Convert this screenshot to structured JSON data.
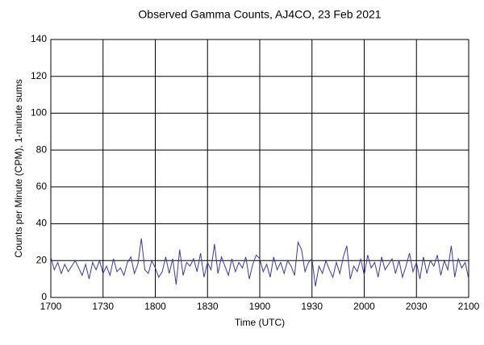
{
  "chart_data": {
    "type": "line",
    "title": "Observed Gamma Counts, AJ4CO, 23 Feb 2021",
    "x_label": "Time (UTC)",
    "y_label": "Counts per Minute (CPM), 1-minute sums",
    "color": "#3a3a9e",
    "grid": true,
    "xlim": [
      1020,
      1260
    ],
    "xticks": [
      {
        "value": 1020,
        "label": "1700"
      },
      {
        "value": 1050,
        "label": "1730"
      },
      {
        "value": 1080,
        "label": "1800"
      },
      {
        "value": 1110,
        "label": "1830"
      },
      {
        "value": 1140,
        "label": "1900"
      },
      {
        "value": 1170,
        "label": "1930"
      },
      {
        "value": 1200,
        "label": "2000"
      },
      {
        "value": 1230,
        "label": "2030"
      },
      {
        "value": 1260,
        "label": "2100"
      }
    ],
    "ylim": [
      0,
      140
    ],
    "yticks": [
      0,
      20,
      40,
      60,
      80,
      100,
      120,
      140
    ],
    "x": [
      1020,
      1022,
      1024,
      1026,
      1028,
      1030,
      1032,
      1034,
      1036,
      1038,
      1040,
      1042,
      1044,
      1046,
      1048,
      1050,
      1052,
      1054,
      1056,
      1058,
      1060,
      1062,
      1064,
      1066,
      1068,
      1070,
      1072,
      1074,
      1076,
      1078,
      1080,
      1082,
      1084,
      1086,
      1088,
      1090,
      1092,
      1094,
      1096,
      1098,
      1100,
      1102,
      1104,
      1106,
      1108,
      1110,
      1112,
      1114,
      1116,
      1118,
      1120,
      1122,
      1124,
      1126,
      1128,
      1130,
      1132,
      1134,
      1136,
      1138,
      1140,
      1142,
      1144,
      1146,
      1148,
      1150,
      1152,
      1154,
      1156,
      1158,
      1160,
      1162,
      1164,
      1166,
      1168,
      1170,
      1172,
      1174,
      1176,
      1178,
      1180,
      1182,
      1184,
      1186,
      1188,
      1190,
      1192,
      1194,
      1196,
      1198,
      1200,
      1202,
      1204,
      1206,
      1208,
      1210,
      1212,
      1214,
      1216,
      1218,
      1220,
      1222,
      1224,
      1226,
      1228,
      1230,
      1232,
      1234,
      1236,
      1238,
      1240,
      1242,
      1244,
      1246,
      1248,
      1250,
      1252,
      1254,
      1256,
      1258,
      1260
    ],
    "values": [
      22,
      15,
      19,
      13,
      18,
      14,
      17,
      20,
      16,
      12,
      18,
      10,
      19,
      15,
      20,
      13,
      17,
      12,
      21,
      14,
      16,
      12,
      19,
      22,
      13,
      18,
      32,
      15,
      13,
      20,
      16,
      11,
      14,
      22,
      13,
      21,
      7,
      26,
      12,
      19,
      17,
      21,
      14,
      24,
      11,
      19,
      15,
      29,
      13,
      22,
      17,
      12,
      21,
      14,
      19,
      16,
      22,
      10,
      18,
      23,
      21,
      14,
      18,
      11,
      22,
      15,
      19,
      13,
      20,
      17,
      12,
      30,
      26,
      14,
      19,
      21,
      6,
      17,
      13,
      20,
      15,
      11,
      19,
      13,
      22,
      28,
      10,
      17,
      14,
      21,
      12,
      23,
      16,
      19,
      11,
      22,
      15,
      18,
      21,
      13,
      20,
      11,
      17,
      24,
      14,
      19,
      10,
      22,
      13,
      20,
      17,
      23,
      12,
      20,
      15,
      28,
      11,
      21,
      16,
      19,
      10
    ]
  }
}
